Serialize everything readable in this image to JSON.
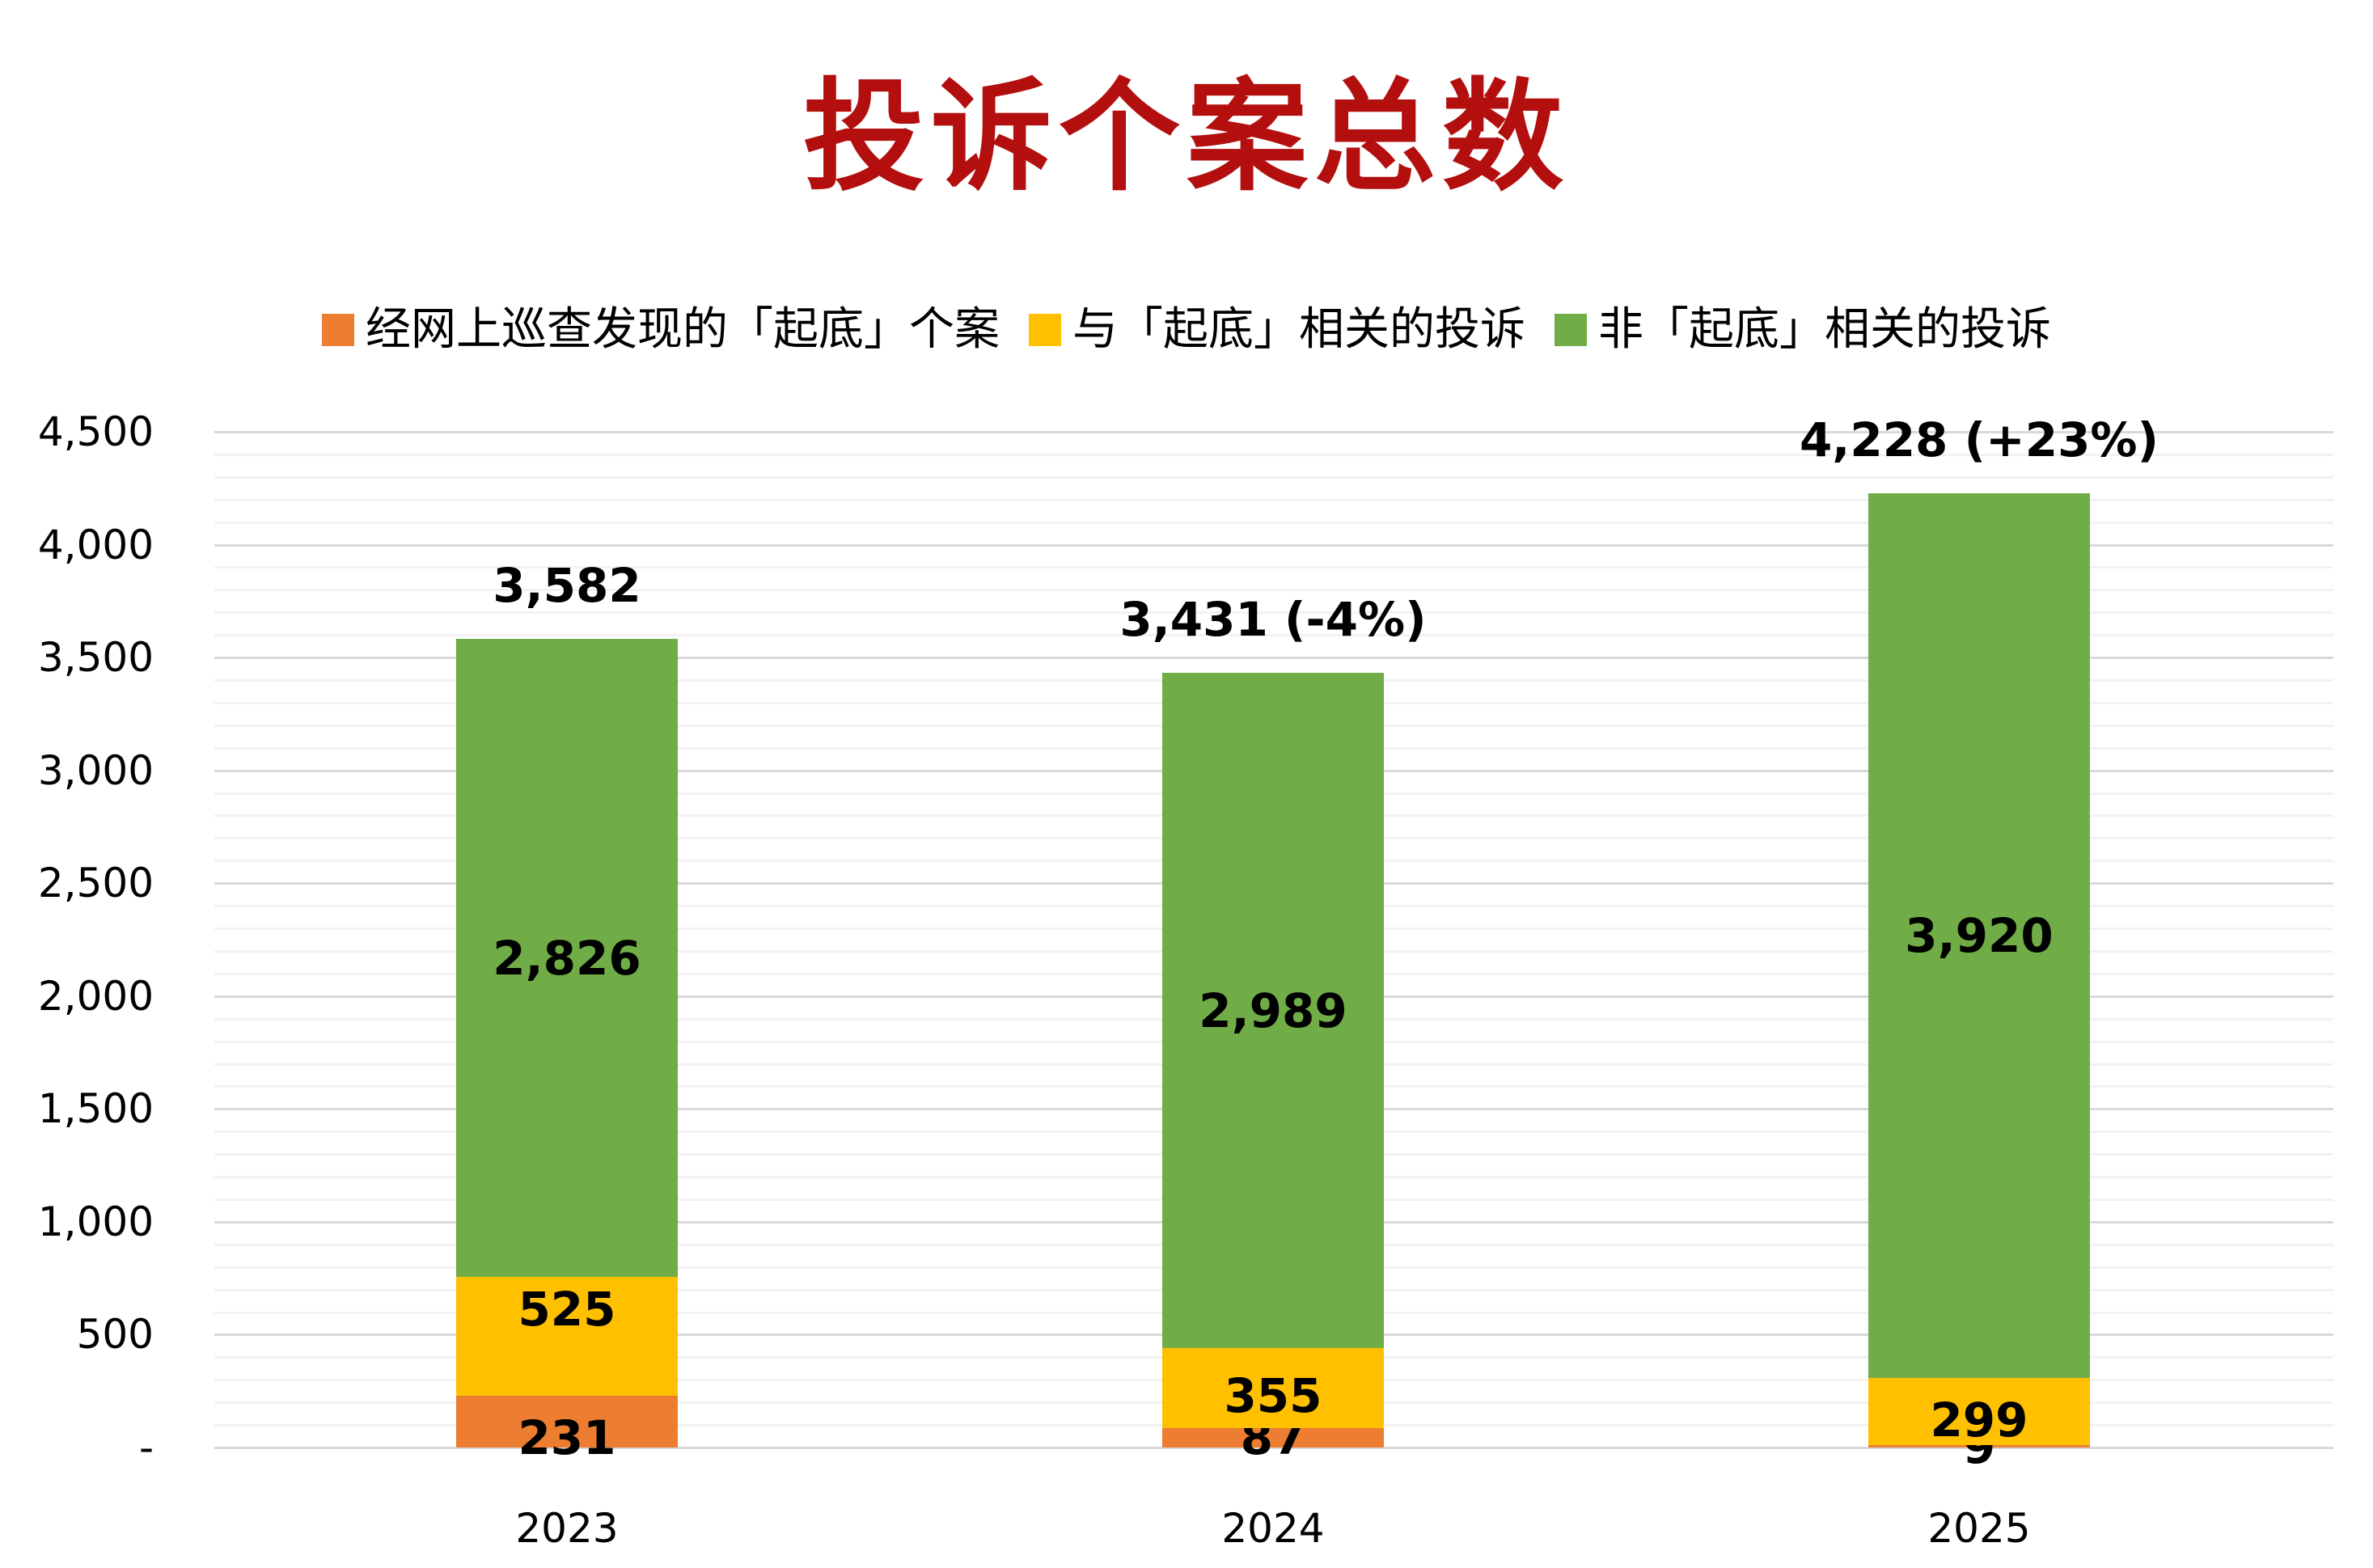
{
  "title": "投诉个案总数",
  "colors": {
    "title": "#B30F0F",
    "series_online": "#ED7D31",
    "series_related": "#FFC000",
    "series_unrelated": "#70AD47"
  },
  "legend": [
    {
      "label": "经网上巡查发现的「起底」个案",
      "color": "#ED7D31"
    },
    {
      "label": "与「起底」相关的投诉",
      "color": "#FFC000"
    },
    {
      "label": "非「起底」相关的投诉",
      "color": "#70AD47"
    }
  ],
  "y_axis": {
    "ticks": [
      "-",
      "500",
      "1,000",
      "1,500",
      "2,000",
      "2,500",
      "3,000",
      "3,500",
      "4,000",
      "4,500"
    ]
  },
  "chart_data": {
    "type": "bar",
    "stacked": true,
    "title": "投诉个案总数",
    "xlabel": "",
    "ylabel": "",
    "ylim": [
      0,
      4500
    ],
    "grid": true,
    "legend_position": "top",
    "categories": [
      "2023",
      "2024",
      "2025"
    ],
    "series": [
      {
        "name": "经网上巡查发现的「起底」个案",
        "color": "#ED7D31",
        "values": [
          231,
          87,
          9
        ]
      },
      {
        "name": "与「起底」相关的投诉",
        "color": "#FFC000",
        "values": [
          525,
          355,
          299
        ]
      },
      {
        "name": "非「起底」相关的投诉",
        "color": "#70AD47",
        "values": [
          2826,
          2989,
          3920
        ]
      }
    ],
    "totals": [
      3582,
      3431,
      4228
    ],
    "total_labels": [
      "3,582",
      "3,431 (-4%)",
      "4,228 (+23%)"
    ],
    "segment_labels": [
      [
        "231",
        "87",
        "9"
      ],
      [
        "525",
        "355",
        "299"
      ],
      [
        "2,826",
        "2,989",
        "3,920"
      ]
    ]
  }
}
